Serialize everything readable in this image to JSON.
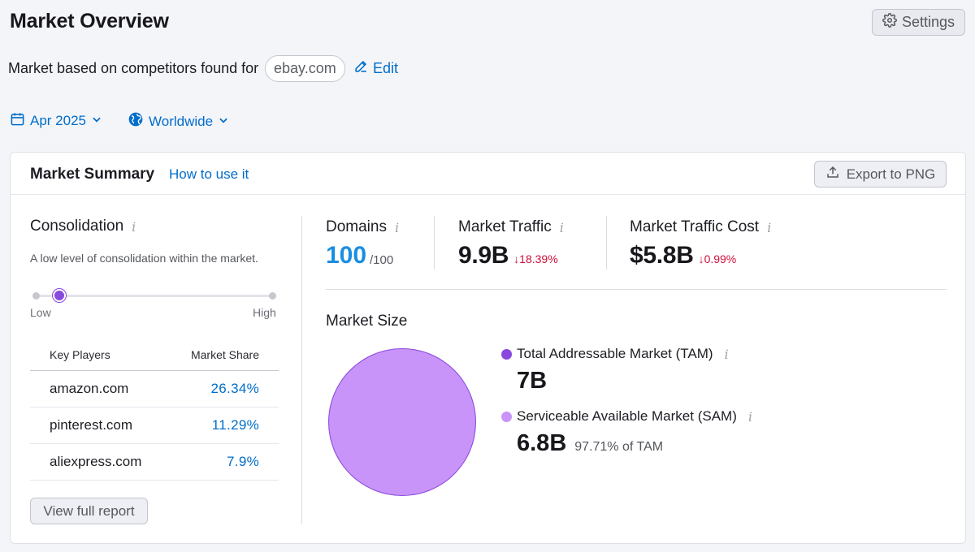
{
  "header": {
    "title": "Market Overview",
    "settings_label": "Settings"
  },
  "competitors": {
    "prefix": "Market based on competitors found for",
    "domain": "ebay.com",
    "edit_label": "Edit"
  },
  "filters": {
    "date": "Apr 2025",
    "region": "Worldwide"
  },
  "summary": {
    "title": "Market Summary",
    "how_to_label": "How to use it",
    "export_label": "Export to PNG"
  },
  "consolidation": {
    "title": "Consolidation",
    "description": "A low level of consolidation within the market.",
    "slider_low": "Low",
    "slider_high": "High",
    "level_fraction": 0.1,
    "table_headers": {
      "player": "Key Players",
      "share": "Market Share"
    },
    "players": [
      {
        "domain": "amazon.com",
        "share": "26.34%"
      },
      {
        "domain": "pinterest.com",
        "share": "11.29%"
      },
      {
        "domain": "aliexpress.com",
        "share": "7.9%"
      }
    ],
    "view_report_label": "View full report"
  },
  "metrics": {
    "domains": {
      "label": "Domains",
      "value": "100",
      "total": "/100"
    },
    "traffic": {
      "label": "Market Traffic",
      "value": "9.9B",
      "delta": "↓18.39%"
    },
    "traffic_cost": {
      "label": "Market Traffic Cost",
      "value": "$5.8B",
      "delta": "↓0.99%"
    }
  },
  "market_size": {
    "title": "Market Size",
    "tam_label": "Total Addressable Market (TAM)",
    "tam_value": "7B",
    "sam_label": "Serviceable Available Market (SAM)",
    "sam_value": "6.8B",
    "sam_pct": "97.71% of TAM"
  },
  "colors": {
    "accent_link": "#006dca",
    "tam_color": "#8949dd",
    "sam_color": "#c994fa",
    "negative": "#d0103a"
  },
  "chart_data": {
    "type": "pie",
    "categories": [
      "Total Addressable Market (TAM)",
      "Serviceable Available Market (SAM)"
    ],
    "values": [
      7,
      6.8
    ],
    "sam_share_of_tam_pct": 97.71
  }
}
